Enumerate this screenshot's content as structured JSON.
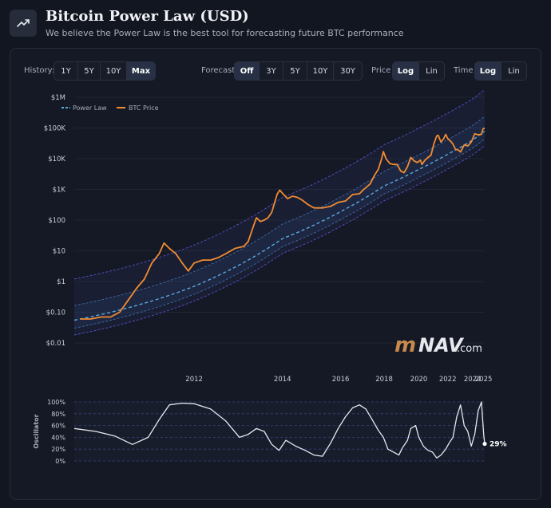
{
  "header": {
    "title": "Bitcoin Power Law (USD)",
    "subtitle": "We believe the Power Law is the best tool for forecasting future BTC performance",
    "icon": "trending-up-icon"
  },
  "controls": {
    "history": {
      "label": "History:",
      "options": [
        "1Y",
        "5Y",
        "10Y",
        "Max"
      ],
      "selected": "Max"
    },
    "forecast": {
      "label": "Forecast",
      "options": [
        "Off",
        "3Y",
        "5Y",
        "10Y",
        "30Y"
      ],
      "selected": "Off"
    },
    "price": {
      "label": "Price",
      "options": [
        "Log",
        "Lin"
      ],
      "selected": "Log"
    },
    "time": {
      "label": "Time",
      "options": [
        "Log",
        "Lin"
      ],
      "selected": "Log"
    }
  },
  "watermark": {
    "m": "m",
    "nav": "NAV",
    "com": ".com"
  },
  "colors": {
    "power_law": "#5aa9e6",
    "btc_price": "#f08c32",
    "band_outer": "#5b4fc8",
    "oscillator": "#e6e8ee",
    "background": "#121620"
  },
  "chart_data": [
    {
      "type": "line",
      "y_scale": "log",
      "x_scale": "log",
      "y_ticks": [
        "$1M",
        "$100K",
        "$10K",
        "$1K",
        "$100",
        "$10",
        "$1",
        "$0.10",
        "$0.01"
      ],
      "y_tick_values": [
        1000000,
        100000,
        10000,
        1000,
        100,
        10,
        1,
        0.1,
        0.01
      ],
      "x_ticks": [
        "2012",
        "2014",
        "2016",
        "2018",
        "2020",
        "2022",
        "2024",
        "2025"
      ],
      "x_tick_values": [
        2012,
        2014,
        2016,
        2018,
        2020,
        2022,
        2024,
        2025
      ],
      "legend": {
        "position": "top-left",
        "entries": [
          "Power Law",
          "BTC Price"
        ]
      },
      "series": [
        {
          "name": "Power Law",
          "style": "dashed",
          "x": [
            2010.5,
            2012,
            2014,
            2016,
            2018,
            2020,
            2022,
            2024,
            2025
          ],
          "y": [
            0.055,
            0.7,
            25,
            190,
            1300,
            4500,
            14000,
            40000,
            75000
          ]
        },
        {
          "name": "BTC Price",
          "x": [
            2010.55,
            2010.65,
            2010.75,
            2010.85,
            2010.95,
            2011.05,
            2011.15,
            2011.25,
            2011.35,
            2011.45,
            2011.52,
            2011.6,
            2011.7,
            2011.8,
            2011.9,
            2012.0,
            2012.15,
            2012.3,
            2012.45,
            2012.6,
            2012.8,
            2013.0,
            2013.1,
            2013.2,
            2013.3,
            2013.4,
            2013.5,
            2013.6,
            2013.7,
            2013.85,
            2013.92,
            2014.0,
            2014.15,
            2014.3,
            2014.45,
            2014.6,
            2014.8,
            2015.0,
            2015.3,
            2015.6,
            2015.9,
            2016.2,
            2016.5,
            2016.8,
            2017.0,
            2017.3,
            2017.5,
            2017.7,
            2017.85,
            2017.96,
            2018.1,
            2018.3,
            2018.5,
            2018.7,
            2018.9,
            2019.1,
            2019.3,
            2019.5,
            2019.7,
            2019.9,
            2020.1,
            2020.2,
            2020.4,
            2020.6,
            2020.8,
            2021.0,
            2021.2,
            2021.3,
            2021.5,
            2021.7,
            2021.85,
            2022.0,
            2022.2,
            2022.4,
            2022.6,
            2022.8,
            2023.0,
            2023.3,
            2023.6,
            2023.9,
            2024.2,
            2024.5,
            2024.8,
            2024.95,
            2025.1
          ],
          "y": [
            0.06,
            0.06,
            0.07,
            0.07,
            0.1,
            0.25,
            0.6,
            1.2,
            4,
            8,
            18,
            12,
            8,
            4,
            2.2,
            4,
            5,
            5,
            6,
            8,
            12,
            14,
            20,
            50,
            120,
            90,
            100,
            120,
            180,
            700,
            950,
            750,
            500,
            600,
            550,
            450,
            320,
            250,
            250,
            280,
            380,
            420,
            680,
            720,
            1000,
            1500,
            2800,
            4500,
            9000,
            17000,
            10000,
            7000,
            6500,
            6500,
            4000,
            3500,
            5500,
            11000,
            8500,
            7500,
            9000,
            6500,
            9000,
            11000,
            13000,
            30000,
            55000,
            58000,
            35000,
            45000,
            62000,
            45000,
            38000,
            30000,
            20000,
            19500,
            16500,
            28000,
            26000,
            35000,
            65000,
            60000,
            62000,
            95000,
            98000
          ]
        }
      ]
    },
    {
      "type": "line",
      "ylabel": "Oscillator",
      "y_ticks": [
        "100%",
        "80%",
        "60%",
        "40%",
        "20%",
        "0%"
      ],
      "y_tick_values": [
        100,
        80,
        60,
        40,
        20,
        0
      ],
      "ylim": [
        0,
        100
      ],
      "current_value_label": "29%",
      "series": [
        {
          "name": "Oscillator",
          "x": [
            2010.5,
            2010.7,
            2010.9,
            2011.1,
            2011.3,
            2011.45,
            2011.6,
            2011.8,
            2012.0,
            2012.3,
            2012.6,
            2012.9,
            2013.1,
            2013.3,
            2013.5,
            2013.7,
            2013.9,
            2014.1,
            2014.4,
            2014.7,
            2015.0,
            2015.3,
            2015.6,
            2015.9,
            2016.2,
            2016.5,
            2016.8,
            2017.1,
            2017.4,
            2017.7,
            2017.96,
            2018.2,
            2018.5,
            2018.8,
            2019.0,
            2019.3,
            2019.5,
            2019.8,
            2020.0,
            2020.3,
            2020.6,
            2020.9,
            2021.2,
            2021.5,
            2021.85,
            2022.1,
            2022.4,
            2022.7,
            2023.0,
            2023.3,
            2023.6,
            2023.9,
            2024.2,
            2024.5,
            2024.8,
            2025.0,
            2025.1
          ],
          "y": [
            55,
            50,
            42,
            28,
            40,
            70,
            95,
            98,
            97,
            88,
            68,
            40,
            45,
            55,
            50,
            28,
            18,
            35,
            25,
            18,
            10,
            8,
            30,
            55,
            75,
            90,
            95,
            88,
            70,
            52,
            40,
            20,
            15,
            10,
            22,
            35,
            55,
            60,
            40,
            25,
            18,
            15,
            5,
            10,
            20,
            30,
            40,
            75,
            95,
            60,
            50,
            25,
            45,
            85,
            100,
            45,
            29
          ]
        }
      ]
    }
  ]
}
